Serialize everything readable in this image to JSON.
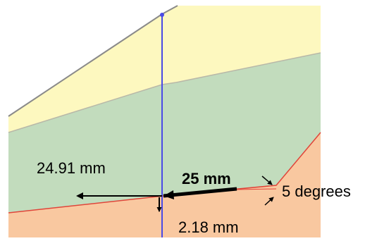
{
  "labels": {
    "horizontal_offset": "24.91 mm",
    "length": "25 mm",
    "angle": "5 degrees",
    "vertical_offset": "2.18 mm"
  },
  "colors": {
    "yellow_region": "#fdf8bf",
    "green_region": "#c2dcbd",
    "orange_region": "#f9c8a0",
    "gray_line": "#8a8a8a",
    "red_line": "#e0453a",
    "blue_line": "#4a4ae6",
    "arrow": "#000000"
  }
}
